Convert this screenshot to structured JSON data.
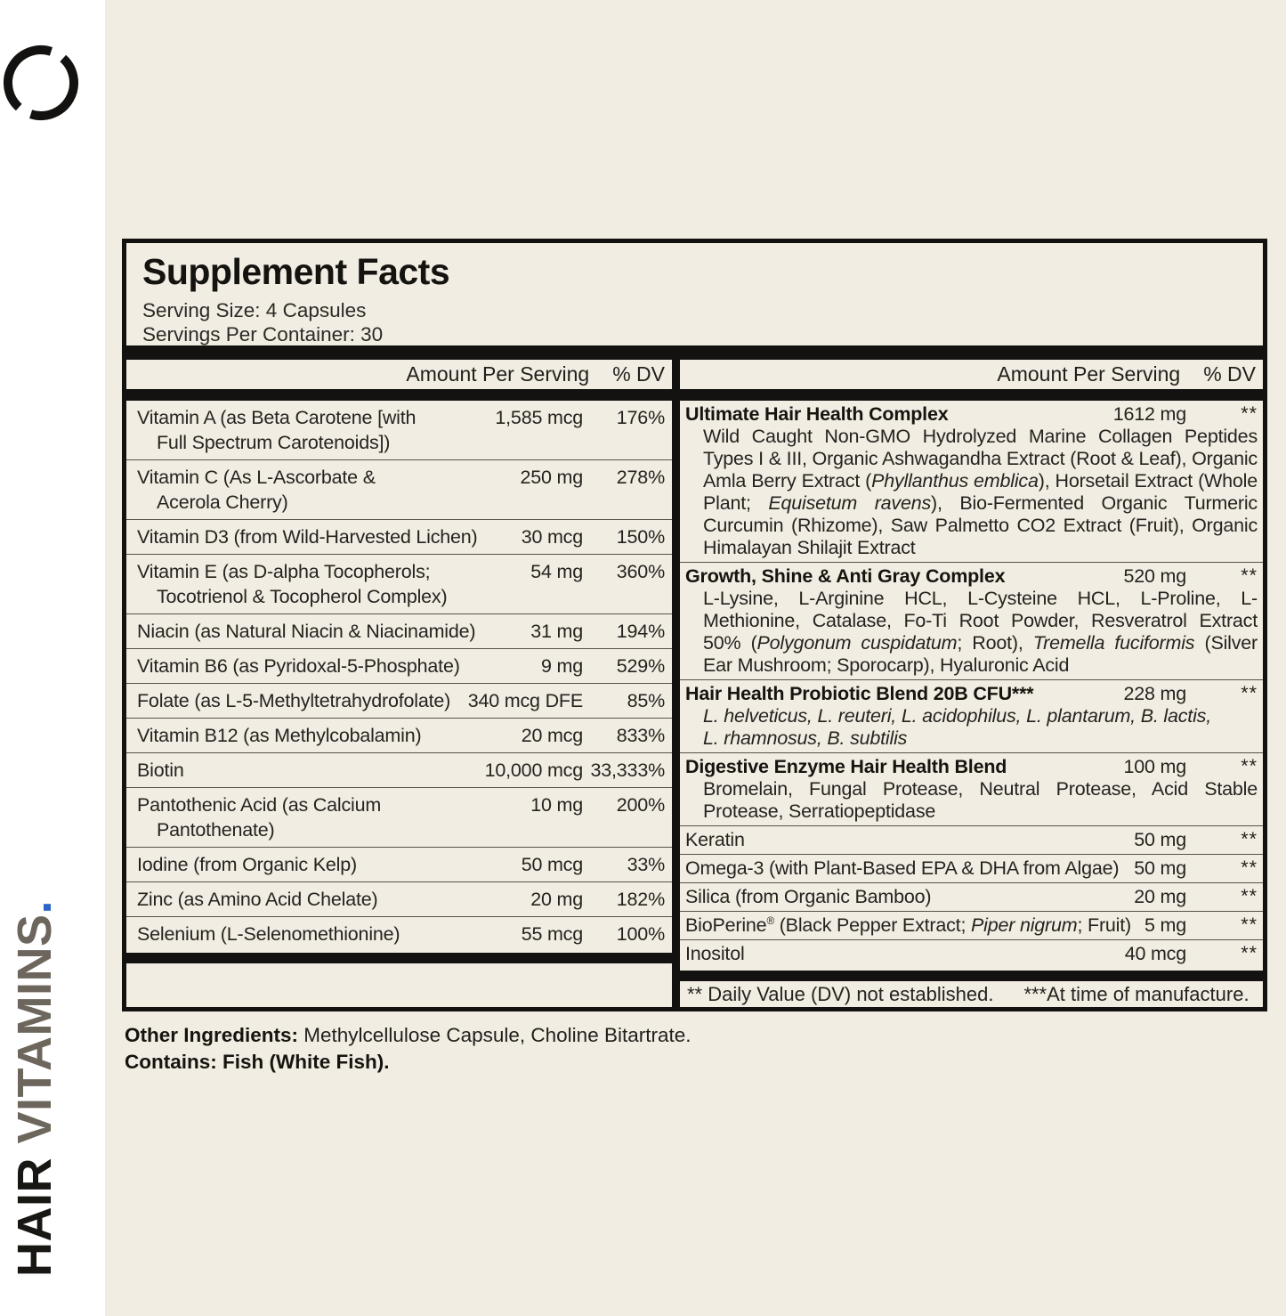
{
  "colors": {
    "background_cream": "#f2ede3",
    "strip_white": "#ffffff",
    "rule_black": "#131211",
    "brand_black": "#181714",
    "brand_taupe": "#6d665d",
    "brand_dot_blue": "#2c63c7"
  },
  "brand": {
    "primary": "HAIR",
    "secondary": " VITAMINS",
    "dot": "."
  },
  "panel": {
    "title": "Supplement Facts",
    "serving_size": "Serving Size: 4 Capsules",
    "servings_per_container": "Servings Per Container: 30",
    "header": {
      "amount": "Amount Per Serving",
      "dv": "% DV"
    },
    "left_rows": [
      {
        "name": [
          "Vitamin A (as Beta Carotene [with",
          "Full Spectrum Carotenoids])"
        ],
        "amount": "1,585 mcg",
        "dv": "176%"
      },
      {
        "name": [
          "Vitamin C (As L-Ascorbate &",
          "Acerola Cherry)"
        ],
        "amount": "250 mg",
        "dv": "278%"
      },
      {
        "name": [
          "Vitamin D3 (from Wild-Harvested Lichen)"
        ],
        "amount": "30 mcg",
        "dv": "150%"
      },
      {
        "name": [
          "Vitamin E (as D-alpha Tocopherols;",
          "Tocotrienol & Tocopherol Complex)"
        ],
        "amount": "54 mg",
        "dv": "360%"
      },
      {
        "name": [
          "Niacin (as Natural Niacin & Niacinamide)"
        ],
        "amount": "31 mg",
        "dv": "194%"
      },
      {
        "name": [
          "Vitamin B6 (as Pyridoxal-5-Phosphate)"
        ],
        "amount": "9 mg",
        "dv": "529%"
      },
      {
        "name": [
          "Folate (as L-5-Methyltetrahydrofolate)"
        ],
        "amount": "340 mcg DFE",
        "dv": "85%"
      },
      {
        "name": [
          "Vitamin B12 (as Methylcobalamin)"
        ],
        "amount": "20 mcg",
        "dv": "833%"
      },
      {
        "name": [
          "Biotin"
        ],
        "amount": "10,000 mcg",
        "dv": "33,333%"
      },
      {
        "name": [
          "Pantothenic Acid (as Calcium",
          "Pantothenate)"
        ],
        "amount": "10 mg",
        "dv": "200%"
      },
      {
        "name": [
          "Iodine (from Organic Kelp)"
        ],
        "amount": "50 mcg",
        "dv": "33%"
      },
      {
        "name": [
          "Zinc (as Amino Acid Chelate)"
        ],
        "amount": "20 mg",
        "dv": "182%"
      },
      {
        "name": [
          "Selenium (L-Selenomethionine)"
        ],
        "amount": "55 mcg",
        "dv": "100%"
      }
    ],
    "right_rows": [
      {
        "type": "complex",
        "name": "Ultimate Hair Health Complex",
        "amount": "1612 mg",
        "dv": "**",
        "desc": [
          {
            "t": "Wild Caught Non-GMO Hydrolyzed Marine Collagen Peptides Types I & III, Organic Ashwagandha Extract (Root & Leaf), Organic Amla Berry Extract ("
          },
          {
            "t": "Phyllanthus emblica",
            "i": true
          },
          {
            "t": "), Horsetail Extract (Whole Plant; "
          },
          {
            "t": "Equisetum ravens",
            "i": true
          },
          {
            "t": "), Bio-Fermented Organic Turmeric Curcumin (Rhizome), Saw Palmetto CO2 Extract (Fruit), Organic Himalayan Shilajit Extract"
          }
        ]
      },
      {
        "type": "complex",
        "name": "Growth, Shine & Anti Gray Complex",
        "amount": "520 mg",
        "dv": "**",
        "desc": [
          {
            "t": "L-Lysine, L-Arginine HCL, L-Cysteine HCL, L-Proline, L-Methionine, Catalase, Fo-Ti Root Powder, Resveratrol Extract 50% ("
          },
          {
            "t": "Polygonum cuspidatum",
            "i": true
          },
          {
            "t": "; Root), "
          },
          {
            "t": "Tremella fuciformis",
            "i": true
          },
          {
            "t": " (Silver Ear Mushroom; Sporocarp), Hyaluronic Acid"
          }
        ]
      },
      {
        "type": "complex",
        "name": "Hair Health Probiotic Blend 20B CFU***",
        "amount": "228 mg",
        "dv": "**",
        "justify": false,
        "max_width": 580,
        "desc": [
          {
            "t": "L. helveticus, L. reuteri, L. acidophilus, L. plantarum, B. lactis, L. rhamnosus, B. subtilis",
            "i": true
          }
        ]
      },
      {
        "type": "complex",
        "name": "Digestive Enzyme Hair Health Blend",
        "amount": "100 mg",
        "dv": "**",
        "desc": [
          {
            "t": "Bromelain, Fungal Protease, Neutral Protease, Acid Stable Protease, Serratiopeptidase"
          }
        ]
      },
      {
        "type": "simple",
        "name_rich": [
          {
            "t": "Keratin"
          }
        ],
        "amount": "50 mg",
        "dv": "**"
      },
      {
        "type": "simple",
        "name_rich": [
          {
            "t": "Omega-3 (with Plant-Based EPA & DHA from Algae)"
          }
        ],
        "amount": "50 mg",
        "dv": "**"
      },
      {
        "type": "simple",
        "name_rich": [
          {
            "t": "Silica (from Organic Bamboo)"
          }
        ],
        "amount": "20 mg",
        "dv": "**"
      },
      {
        "type": "simple",
        "name_rich": [
          {
            "t": "BioPerine"
          },
          {
            "t": "®",
            "sup": true
          },
          {
            "t": " (Black Pepper Extract; "
          },
          {
            "t": "Piper nigrum",
            "i": true
          },
          {
            "t": "; Fruit)"
          }
        ],
        "amount": "5 mg",
        "dv": "**"
      },
      {
        "type": "simple",
        "name_rich": [
          {
            "t": "Inositol"
          }
        ],
        "amount": "40 mcg",
        "dv": "**"
      }
    ],
    "footnote": {
      "part1": "** Daily Value (DV) not established.",
      "part2": "***At time of manufacture."
    }
  },
  "below": {
    "other_label": "Other Ingredients:",
    "other_text": " Methylcellulose Capsule, Choline Bitartrate.",
    "contains": "Contains: Fish (White Fish)."
  }
}
